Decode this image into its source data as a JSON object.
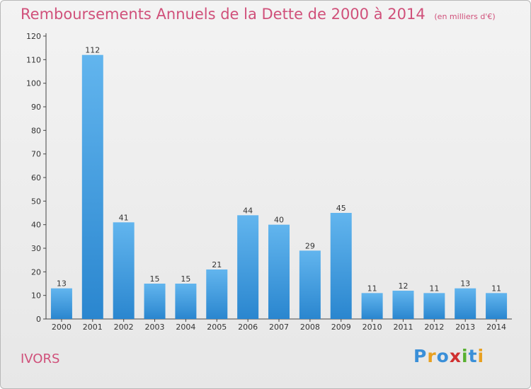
{
  "chart_data": {
    "type": "bar",
    "title": "Remboursements Annuels de la Dette de 2000 à 2014",
    "subtitle": "(en milliers d'€)",
    "categories": [
      "2000",
      "2001",
      "2002",
      "2003",
      "2004",
      "2005",
      "2006",
      "2007",
      "2008",
      "2009",
      "2010",
      "2011",
      "2012",
      "2013",
      "2014"
    ],
    "values": [
      13,
      112,
      41,
      15,
      15,
      21,
      44,
      40,
      29,
      45,
      11,
      12,
      11,
      13,
      11
    ],
    "ylim": [
      0,
      120
    ],
    "yticks": [
      0,
      10,
      20,
      30,
      40,
      50,
      60,
      70,
      80,
      90,
      100,
      110,
      120
    ],
    "grid": false,
    "bar_color": "#3d9ce0"
  },
  "commune": "IVORS",
  "logo": {
    "text": "Proxiti",
    "letters": [
      {
        "ch": "P",
        "color": "#3a8fd8"
      },
      {
        "ch": "r",
        "color": "#e8a020"
      },
      {
        "ch": "o",
        "color": "#3a8fd8"
      },
      {
        "ch": "x",
        "color": "#d03030"
      },
      {
        "ch": "i",
        "color": "#58b030"
      },
      {
        "ch": "t",
        "color": "#3a8fd8"
      },
      {
        "ch": "i",
        "color": "#e8a020"
      }
    ]
  }
}
